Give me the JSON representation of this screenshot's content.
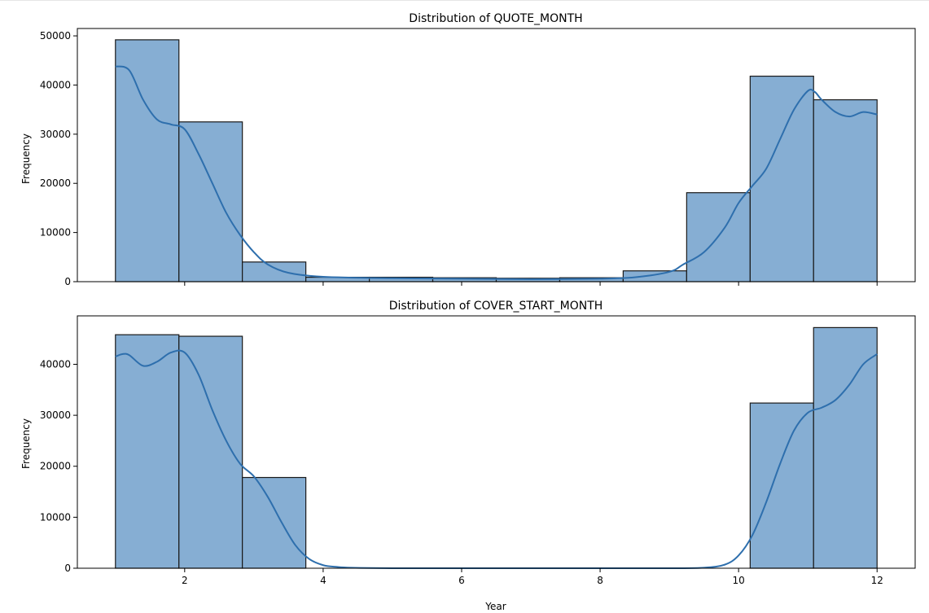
{
  "chart_data": [
    {
      "type": "bar",
      "title": "Distribution of QUOTE_MONTH",
      "xlabel": "",
      "ylabel": "Frequency",
      "xlim": [
        0.45,
        12.55
      ],
      "ylim": [
        0,
        51500
      ],
      "xticks": [
        2,
        4,
        6,
        8,
        10,
        12
      ],
      "show_xtick_labels": false,
      "yticks": [
        0,
        10000,
        20000,
        30000,
        40000,
        50000
      ],
      "grid": false,
      "bins": [
        [
          1.0,
          1.917,
          49200
        ],
        [
          1.917,
          2.833,
          32500
        ],
        [
          2.833,
          3.75,
          4000
        ],
        [
          3.75,
          4.667,
          900
        ],
        [
          4.667,
          5.583,
          900
        ],
        [
          5.583,
          6.5,
          800
        ],
        [
          6.5,
          7.417,
          700
        ],
        [
          7.417,
          8.333,
          800
        ],
        [
          8.333,
          9.25,
          2200
        ],
        [
          9.25,
          10.167,
          18100
        ],
        [
          10.167,
          11.083,
          41800
        ],
        [
          11.083,
          12.0,
          37000
        ]
      ],
      "kde": {
        "x": [
          1.0,
          1.2,
          1.4,
          1.6,
          1.8,
          2.0,
          2.2,
          2.4,
          2.6,
          2.8,
          3.0,
          3.2,
          3.5,
          4.0,
          5.0,
          6.0,
          7.0,
          8.0,
          8.5,
          9.0,
          9.2,
          9.5,
          9.8,
          10.0,
          10.2,
          10.4,
          10.6,
          10.8,
          11.0,
          11.1,
          11.2,
          11.4,
          11.6,
          11.8,
          12.0
        ],
        "y": [
          43800,
          43000,
          37000,
          33000,
          32000,
          31000,
          26000,
          20000,
          14000,
          9500,
          6000,
          3500,
          1800,
          1000,
          700,
          600,
          500,
          600,
          900,
          2000,
          3500,
          6000,
          11000,
          16000,
          19500,
          23000,
          29000,
          35000,
          38800,
          38600,
          37000,
          34500,
          33600,
          34500,
          34000
        ]
      }
    },
    {
      "type": "bar",
      "title": "Distribution of COVER_START_MONTH",
      "xlabel": "Year",
      "ylabel": "Frequency",
      "xlim": [
        0.45,
        12.55
      ],
      "ylim": [
        0,
        49500
      ],
      "xticks": [
        2,
        4,
        6,
        8,
        10,
        12
      ],
      "show_xtick_labels": true,
      "yticks": [
        0,
        10000,
        20000,
        30000,
        40000
      ],
      "grid": false,
      "bins": [
        [
          1.0,
          1.917,
          45800
        ],
        [
          1.917,
          2.833,
          45500
        ],
        [
          2.833,
          3.75,
          17800
        ],
        [
          10.167,
          11.083,
          32400
        ],
        [
          11.083,
          12.0,
          47200
        ]
      ],
      "kde": {
        "x": [
          1.0,
          1.1,
          1.2,
          1.4,
          1.6,
          1.8,
          2.0,
          2.2,
          2.4,
          2.6,
          2.8,
          3.0,
          3.2,
          3.4,
          3.6,
          3.8,
          4.0,
          4.2,
          4.4,
          5.0,
          6.0,
          7.0,
          8.0,
          9.0,
          9.5,
          9.8,
          10.0,
          10.2,
          10.4,
          10.6,
          10.8,
          11.0,
          11.2,
          11.4,
          11.6,
          11.8,
          12.0
        ],
        "y": [
          41500,
          42000,
          41800,
          39700,
          40500,
          42300,
          42300,
          38000,
          31000,
          25000,
          20500,
          18000,
          14000,
          9000,
          4500,
          1800,
          600,
          250,
          100,
          0,
          0,
          0,
          0,
          0,
          100,
          700,
          2500,
          6500,
          13000,
          20500,
          27000,
          30500,
          31500,
          33000,
          36000,
          40000,
          42000
        ]
      }
    }
  ]
}
